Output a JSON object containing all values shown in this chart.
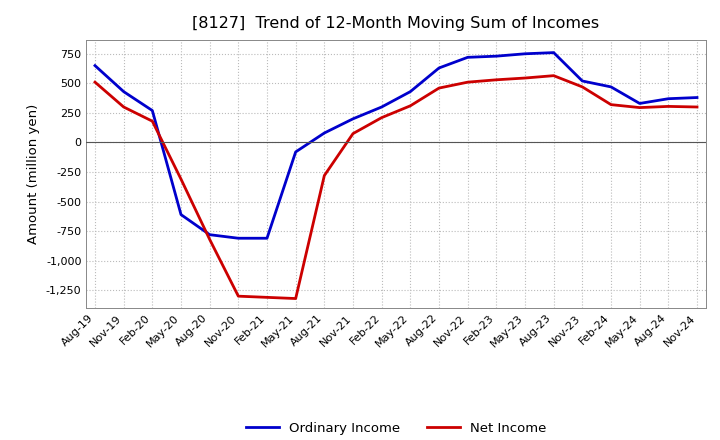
{
  "title": "[8127]  Trend of 12-Month Moving Sum of Incomes",
  "ylabel": "Amount (million yen)",
  "background_color": "#ffffff",
  "grid_color": "#bbbbbb",
  "plot_bg_color": "#ffffff",
  "x_labels": [
    "Aug-19",
    "Nov-19",
    "Feb-20",
    "May-20",
    "Aug-20",
    "Nov-20",
    "Feb-21",
    "May-21",
    "Aug-21",
    "Nov-21",
    "Feb-22",
    "May-22",
    "Aug-22",
    "Nov-22",
    "Feb-23",
    "May-23",
    "Aug-23",
    "Nov-23",
    "Feb-24",
    "May-24",
    "Aug-24",
    "Nov-24"
  ],
  "ordinary_income": [
    650,
    430,
    270,
    -610,
    -780,
    -810,
    -810,
    -80,
    80,
    200,
    300,
    430,
    630,
    720,
    730,
    750,
    760,
    520,
    470,
    330,
    370,
    380
  ],
  "net_income": [
    510,
    300,
    180,
    -310,
    -820,
    -1300,
    -1310,
    -1320,
    -280,
    75,
    210,
    310,
    460,
    510,
    530,
    545,
    565,
    470,
    320,
    295,
    305,
    300
  ],
  "ordinary_income_color": "#0000cc",
  "net_income_color": "#cc0000",
  "ylim": [
    -1400,
    870
  ],
  "yticks": [
    -1250,
    -1000,
    -750,
    -500,
    -250,
    0,
    250,
    500,
    750
  ],
  "line_width": 2.0,
  "legend_labels": [
    "Ordinary Income",
    "Net Income"
  ],
  "title_fontsize": 11.5,
  "axis_fontsize": 9.5,
  "tick_fontsize": 8.0
}
